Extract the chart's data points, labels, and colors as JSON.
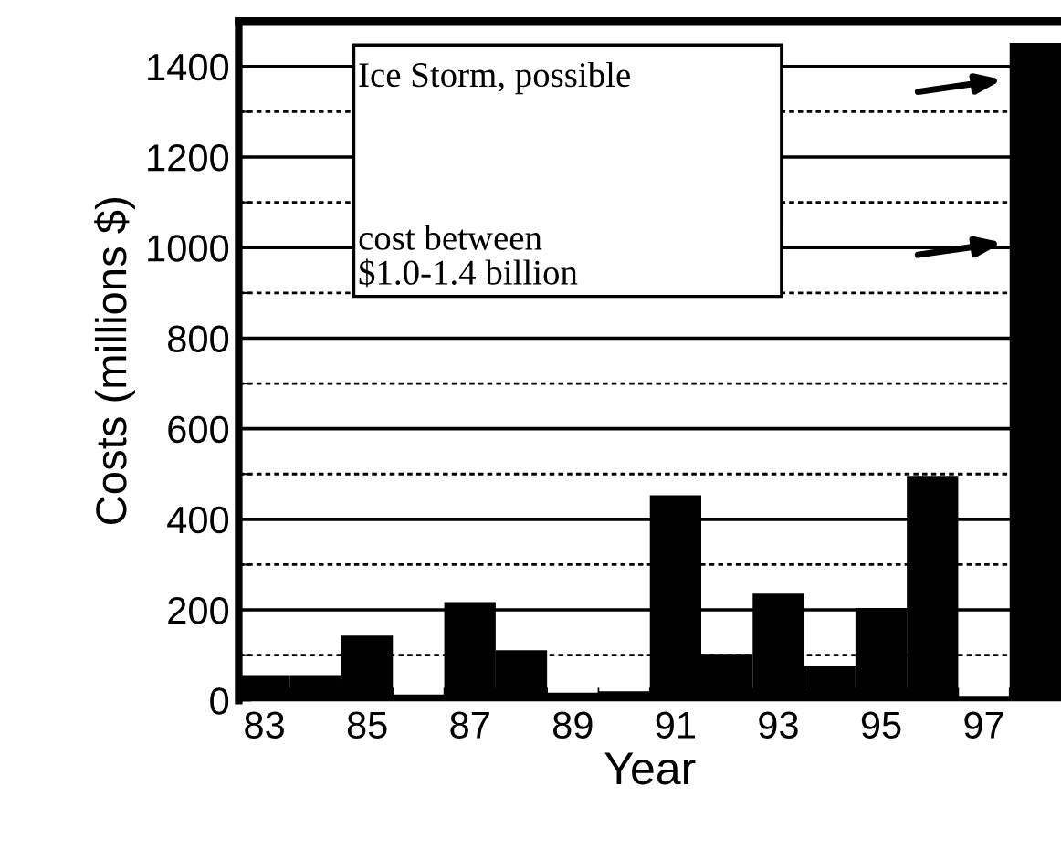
{
  "chart_data": {
    "type": "bar",
    "xlabel": "Year",
    "ylabel": "Costs (millions $)",
    "categories": [
      "83",
      null,
      "85",
      null,
      "87",
      null,
      "89",
      null,
      "91",
      null,
      "93",
      null,
      "95",
      null,
      "97",
      null
    ],
    "values": [
      56,
      56,
      143,
      13,
      217,
      111,
      17,
      20,
      453,
      103,
      236,
      77,
      204,
      496,
      10,
      1452
    ],
    "color": "#000000",
    "ylim": [
      0,
      1500
    ],
    "yticks": [
      0,
      {
        "value": 100,
        "label": null
      },
      200,
      {
        "value": 300,
        "label": null
      },
      400,
      {
        "value": 500,
        "label": null
      },
      600,
      {
        "value": 700,
        "label": null
      },
      800,
      {
        "value": 900,
        "label": null
      },
      1000,
      {
        "value": 1100,
        "label": null
      },
      1200,
      {
        "value": 1300,
        "label": null
      },
      1400
    ],
    "grid": "y",
    "annotations": [
      "Ice Storm, possible",
      "cost between\n$1.0-1.4 billion"
    ]
  }
}
